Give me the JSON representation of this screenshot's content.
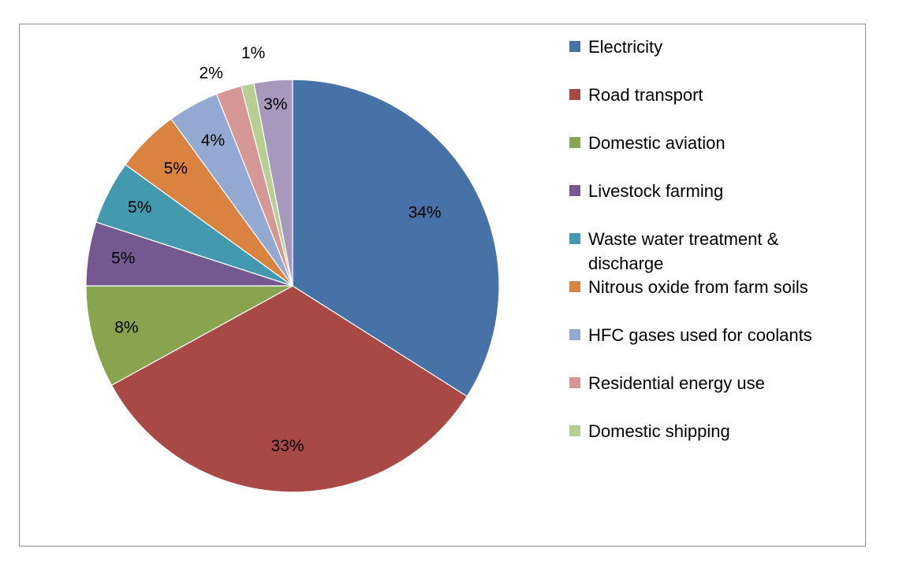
{
  "chart_data": {
    "type": "pie",
    "title": "",
    "start_angle_deg": 0,
    "direction": "clockwise",
    "legend_position": "right",
    "slices": [
      {
        "name": "Electricity",
        "value": 34,
        "label": "34%",
        "color": "#4672A8"
      },
      {
        "name": "Road transport",
        "value": 33,
        "label": "33%",
        "color": "#A84946"
      },
      {
        "name": "Domestic aviation",
        "value": 8,
        "label": "8%",
        "color": "#88A44F"
      },
      {
        "name": "Livestock farming",
        "value": 5,
        "label": "5%",
        "color": "#73598F"
      },
      {
        "name": "Waste water treatment & discharge",
        "value": 5,
        "label": "5%",
        "color": "#4399AE"
      },
      {
        "name": "Nitrous oxide from farm soils",
        "value": 5,
        "label": "5%",
        "color": "#DA8340"
      },
      {
        "name": "HFC gases used for coolants",
        "value": 4,
        "label": "4%",
        "color": "#94A9D2"
      },
      {
        "name": "Residential energy use",
        "value": 2,
        "label": "2%",
        "color": "#D69896"
      },
      {
        "name": "Domestic shipping",
        "value": 1,
        "label": "1%",
        "color": "#B8CF94"
      },
      {
        "name": "",
        "value": 3,
        "label": "3%",
        "color": "#A799BE"
      }
    ]
  }
}
